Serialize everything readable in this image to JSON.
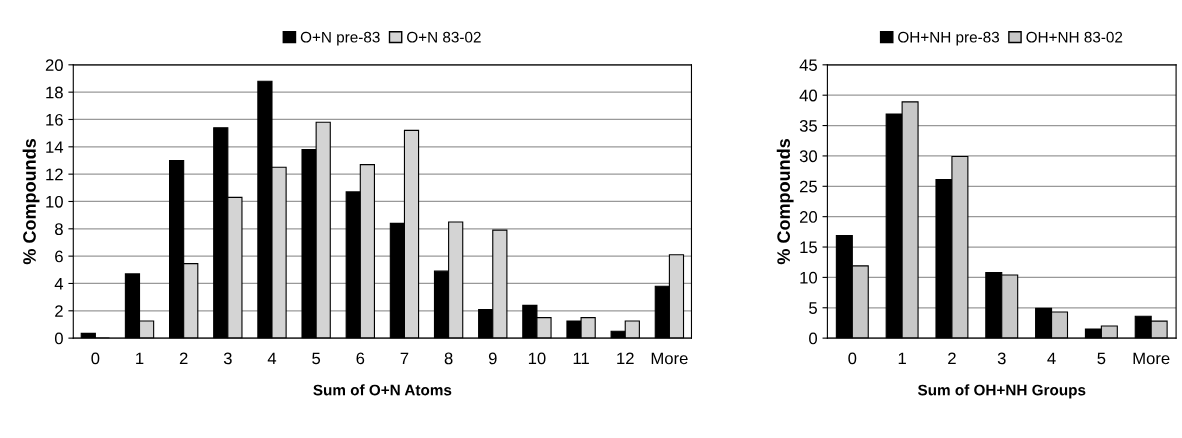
{
  "chart_data": [
    {
      "type": "bar",
      "xlabel": "Sum of O+N Atoms",
      "ylabel": "% Compounds",
      "categories": [
        "0",
        "1",
        "2",
        "3",
        "4",
        "5",
        "6",
        "7",
        "8",
        "9",
        "10",
        "11",
        "12",
        "More"
      ],
      "series": [
        {
          "name": "O+N pre-83",
          "color": "#000000",
          "values": [
            0.35,
            4.7,
            13.0,
            15.4,
            18.8,
            13.8,
            10.7,
            8.4,
            4.9,
            2.1,
            2.4,
            1.25,
            0.5,
            3.8
          ]
        },
        {
          "name": "O+N 83-02",
          "color": "#d4d4d4",
          "values": [
            0,
            1.25,
            5.45,
            10.3,
            12.5,
            15.8,
            12.7,
            15.2,
            8.5,
            7.9,
            1.5,
            1.5,
            1.25,
            6.1
          ]
        }
      ],
      "ylim": [
        0,
        20
      ],
      "yticks": [
        0,
        2,
        4,
        6,
        8,
        10,
        12,
        14,
        16,
        18,
        20
      ],
      "grid": "y",
      "legend": "top"
    },
    {
      "type": "bar",
      "xlabel": "Sum of OH+NH Groups",
      "ylabel": "% Compounds",
      "categories": [
        "0",
        "1",
        "2",
        "3",
        "4",
        "5",
        "More"
      ],
      "series": [
        {
          "name": "OH+NH pre-83",
          "color": "#000000",
          "values": [
            16.9,
            36.9,
            26.1,
            10.8,
            4.9,
            1.5,
            3.6
          ]
        },
        {
          "name": "OH+NH 83-02",
          "color": "#c8c8c8",
          "values": [
            11.9,
            38.9,
            29.9,
            10.4,
            4.3,
            2.0,
            2.8
          ]
        }
      ],
      "ylim": [
        0,
        45
      ],
      "yticks": [
        0,
        5,
        10,
        15,
        20,
        25,
        30,
        35,
        40,
        45
      ],
      "grid": "y",
      "legend": "top"
    }
  ]
}
